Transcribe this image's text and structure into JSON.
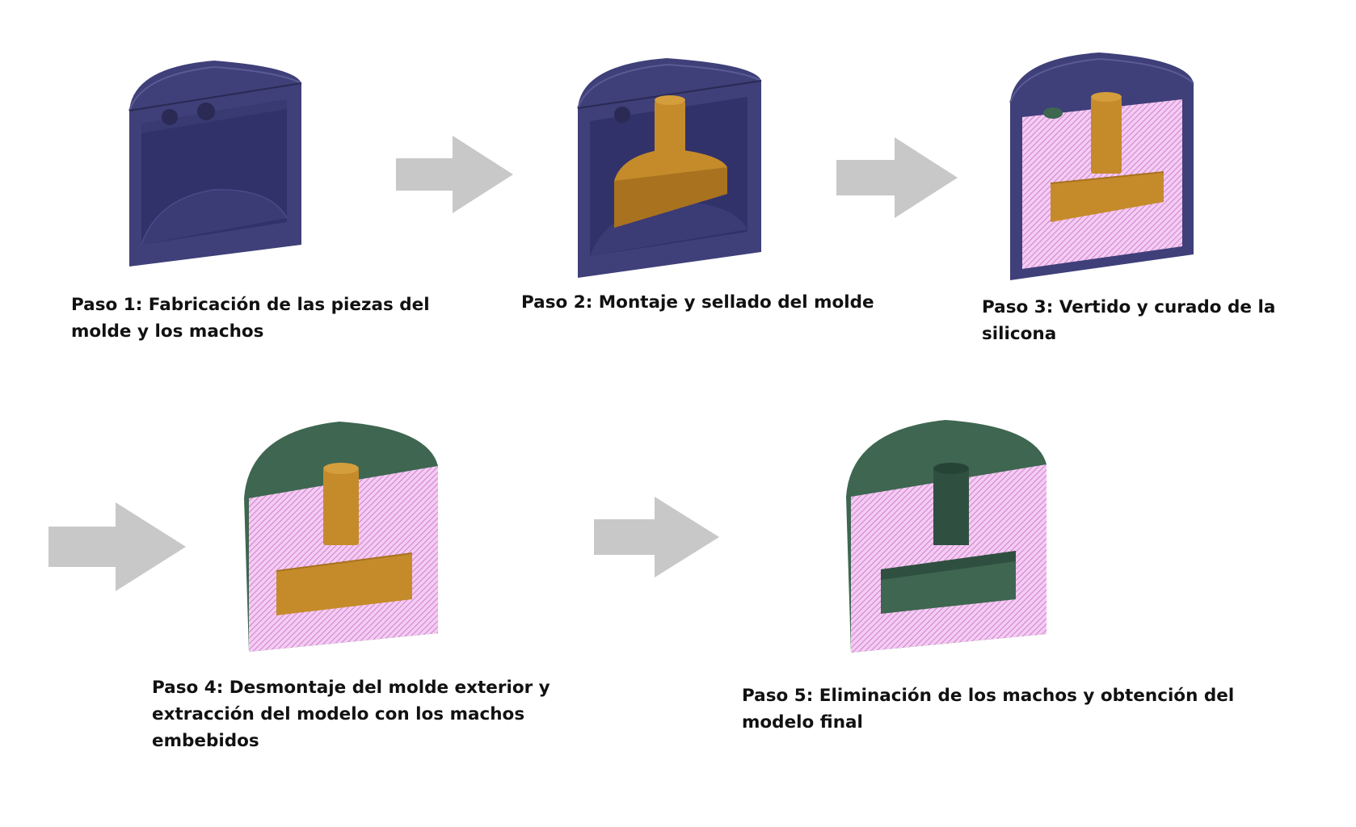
{
  "colors": {
    "mold": "#3f3f79",
    "mold_dark": "#2f2f5f",
    "core": "#c58b2a",
    "core_dark": "#a8721f",
    "silicone_fill": "#f4ccf2",
    "silicone_hatch": "#c86cc8",
    "cured": "#3e6650",
    "cured_dark": "#2f5040",
    "arrow": "#c8c8c8"
  },
  "steps": [
    {
      "label": "Paso 1: Fabricación de las piezas del\nmolde y los machos",
      "icon": "mold-parts-figure"
    },
    {
      "label": "Paso 2: Montaje y sellado del molde",
      "icon": "assembled-mold-figure"
    },
    {
      "label": "Paso 3: Vertido y curado de la silicona",
      "icon": "poured-silicone-figure"
    },
    {
      "label": "Paso 4: Desmontaje del molde exterior y\nextracción del modelo con los machos\nembebidos",
      "icon": "demolded-model-figure"
    },
    {
      "label": "Paso 5: Eliminación de los machos y obtención del\nmodelo final",
      "icon": "final-model-figure"
    }
  ]
}
